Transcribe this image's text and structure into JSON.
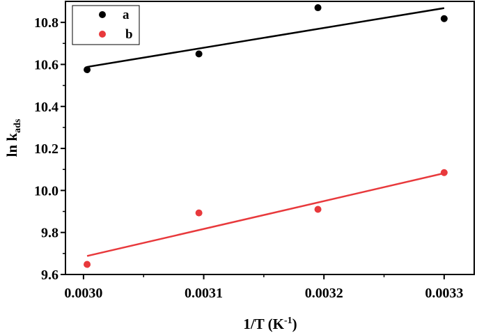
{
  "chart_data": {
    "type": "scatter",
    "x_ticks": [
      "0.0030",
      "0.0031",
      "0.0032",
      "0.0033"
    ],
    "y_ticks": [
      "9.6",
      "9.8",
      "10.0",
      "10.2",
      "10.4",
      "10.6",
      "10.8"
    ],
    "xlim": [
      0.002985,
      0.003325
    ],
    "ylim": [
      9.6,
      10.9
    ],
    "grid": false,
    "legend_position": "top-left",
    "ylabel_main": "ln k",
    "ylabel_sub": "ads",
    "xlabel_main": "1/T (K",
    "xlabel_sup": "-1",
    "xlabel_close": ")",
    "series": [
      {
        "name": "a",
        "color": "#000000",
        "x": [
          0.003003,
          0.003096,
          0.003195,
          0.0033
        ],
        "y": [
          10.575,
          10.65,
          10.87,
          10.818
        ],
        "fit": [
          [
            0.003003,
            10.588
          ],
          [
            0.0033,
            10.868
          ]
        ]
      },
      {
        "name": "b",
        "color": "#e8393c",
        "x": [
          0.003003,
          0.003096,
          0.003195,
          0.0033
        ],
        "y": [
          9.648,
          9.893,
          9.91,
          10.085
        ],
        "fit": [
          [
            0.003003,
            9.688
          ],
          [
            0.0033,
            10.082
          ]
        ]
      }
    ]
  }
}
